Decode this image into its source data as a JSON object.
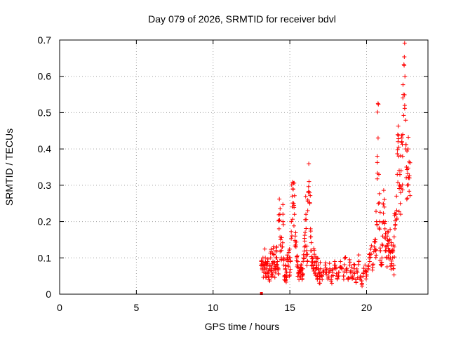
{
  "chart_data": {
    "type": "scatter",
    "title": "Day 079 of 2026, SRMTID for receiver bdvl",
    "xlabel": "GPS time / hours",
    "ylabel": "SRMTID / TECUs",
    "xlim": [
      0,
      24
    ],
    "ylim": [
      0,
      0.7
    ],
    "xticks": [
      0,
      5,
      10,
      15,
      20
    ],
    "yticks": [
      0,
      0.1,
      0.2,
      0.3,
      0.4,
      0.5,
      0.6,
      0.7
    ],
    "grid": true,
    "marker": "+",
    "color": "#ff0000",
    "series": [
      {
        "name": "SRMTID",
        "x": [
          13.15,
          13.2,
          13.25,
          13.3,
          13.35,
          13.4,
          13.45,
          13.5,
          13.55,
          13.6,
          13.65,
          13.7,
          13.75,
          13.8,
          13.85,
          13.9,
          13.95,
          14.0,
          14.05,
          14.1,
          14.15,
          14.2,
          14.25,
          14.3,
          14.35,
          14.4,
          14.45,
          14.5,
          14.55,
          14.6,
          14.65,
          14.7,
          14.75,
          14.8,
          14.85,
          14.9,
          14.95,
          15.0,
          15.05,
          15.1,
          15.15,
          15.2,
          15.25,
          15.3,
          15.35,
          15.4,
          15.45,
          15.5,
          15.55,
          15.6,
          15.65,
          15.7,
          15.75,
          15.8,
          15.85,
          15.9,
          15.95,
          16.0,
          16.05,
          16.1,
          16.15,
          16.2,
          16.25,
          16.3,
          16.35,
          16.4,
          16.45,
          16.5,
          16.55,
          16.6,
          16.65,
          16.7,
          16.75,
          16.8,
          16.85,
          16.9,
          16.95,
          17.0,
          17.1,
          17.2,
          17.3,
          17.4,
          17.5,
          17.6,
          17.7,
          17.8,
          17.9,
          18.0,
          18.1,
          18.2,
          18.3,
          18.4,
          18.5,
          18.6,
          18.7,
          18.8,
          18.9,
          19.0,
          19.1,
          19.2,
          19.3,
          19.4,
          19.5,
          19.6,
          19.7,
          19.8,
          19.9,
          20.0,
          20.1,
          20.2,
          20.3,
          20.4,
          20.5,
          20.55,
          20.6,
          20.65,
          20.7,
          20.75,
          20.8,
          20.85,
          20.9,
          20.95,
          21.0,
          21.05,
          21.1,
          21.15,
          21.2,
          21.25,
          21.3,
          21.35,
          21.4,
          21.45,
          21.5,
          21.55,
          21.6,
          21.65,
          21.7,
          21.75,
          21.8,
          21.85,
          21.9,
          21.95,
          22.0,
          22.05,
          22.1,
          22.15,
          22.2,
          22.25,
          22.3,
          22.35,
          22.4,
          22.45,
          22.5,
          22.55,
          22.6,
          22.65,
          22.7,
          22.75,
          22.8
        ],
        "y": [
          0.09,
          0.07,
          0.1,
          0.06,
          0.08,
          0.1,
          0.05,
          0.07,
          0.09,
          0.06,
          0.04,
          0.08,
          0.1,
          0.07,
          0.05,
          0.09,
          0.11,
          0.08,
          0.06,
          0.1,
          0.13,
          0.09,
          0.07,
          0.18,
          0.22,
          0.15,
          0.1,
          0.13,
          0.2,
          0.08,
          0.05,
          0.07,
          0.04,
          0.06,
          0.1,
          0.08,
          0.12,
          0.06,
          0.09,
          0.2,
          0.27,
          0.29,
          0.25,
          0.22,
          0.16,
          0.13,
          0.1,
          0.08,
          0.06,
          0.05,
          0.07,
          0.06,
          0.08,
          0.05,
          0.07,
          0.1,
          0.13,
          0.17,
          0.22,
          0.12,
          0.09,
          0.28,
          0.31,
          0.25,
          0.18,
          0.12,
          0.08,
          0.1,
          0.07,
          0.11,
          0.06,
          0.09,
          0.07,
          0.05,
          0.08,
          0.06,
          0.04,
          0.07,
          0.05,
          0.06,
          0.08,
          0.06,
          0.05,
          0.07,
          0.04,
          0.06,
          0.08,
          0.07,
          0.05,
          0.06,
          0.09,
          0.07,
          0.05,
          0.1,
          0.06,
          0.04,
          0.08,
          0.06,
          0.05,
          0.07,
          0.04,
          0.06,
          0.09,
          0.05,
          0.03,
          0.06,
          0.08,
          0.05,
          0.07,
          0.09,
          0.11,
          0.08,
          0.13,
          0.15,
          0.12,
          0.2,
          0.38,
          0.43,
          0.33,
          0.2,
          0.12,
          0.08,
          0.1,
          0.16,
          0.2,
          0.24,
          0.18,
          0.13,
          0.1,
          0.16,
          0.14,
          0.12,
          0.15,
          0.1,
          0.08,
          0.12,
          0.1,
          0.07,
          0.13,
          0.18,
          0.22,
          0.27,
          0.33,
          0.42,
          0.38,
          0.3,
          0.25,
          0.34,
          0.42,
          0.38,
          0.55,
          0.63,
          0.6,
          0.4,
          0.35,
          0.3,
          0.4,
          0.32,
          0.32
        ],
        "outlier": {
          "x": 13.15,
          "y": 0.0
        }
      }
    ]
  }
}
